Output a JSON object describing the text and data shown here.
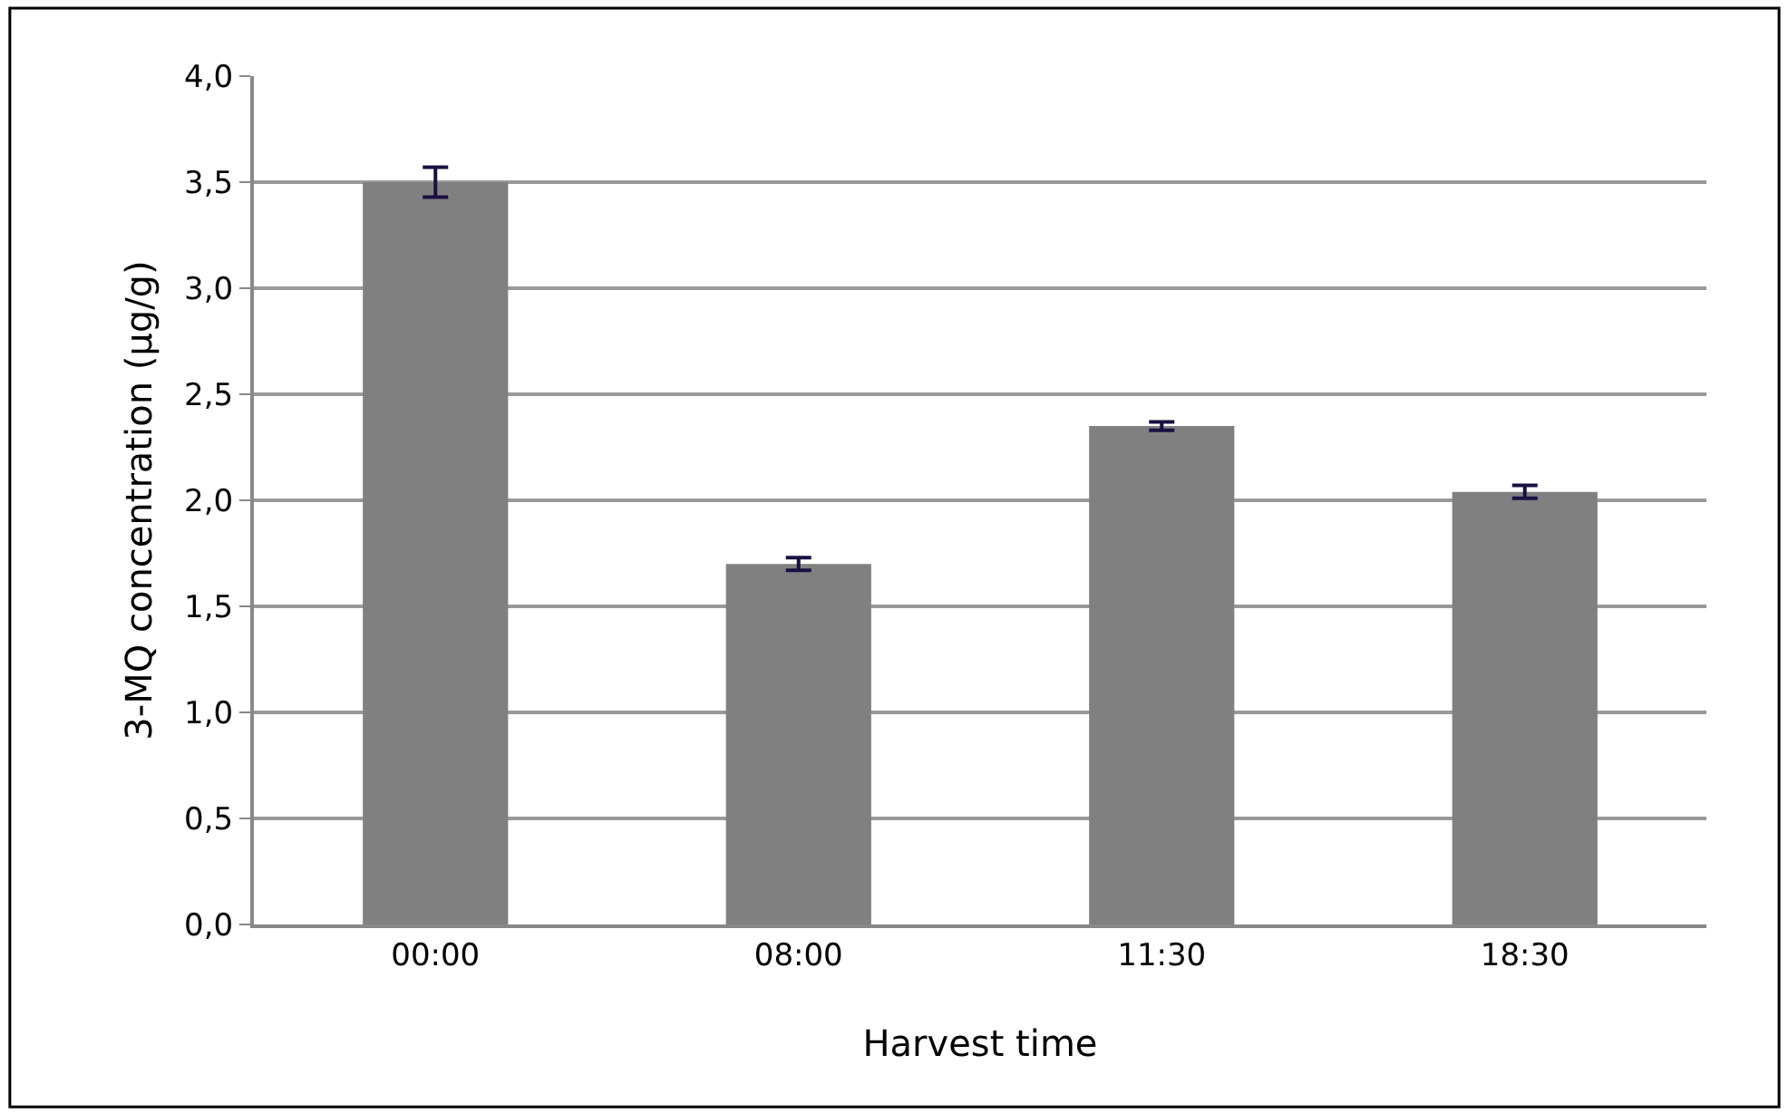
{
  "chart_data": {
    "type": "bar",
    "xlabel": "Harvest time",
    "ylabel": "3-MQ concentration (µg/g)",
    "categories": [
      "00:00",
      "08:00",
      "11:30",
      "18:30"
    ],
    "values": [
      3.5,
      1.7,
      2.35,
      2.04
    ],
    "errors": [
      0.07,
      0.03,
      0.02,
      0.03
    ],
    "color": "#808080",
    "ylim": [
      0,
      4
    ],
    "yticks": [
      {
        "value": 0,
        "label": "0,0"
      },
      {
        "value": 0.5,
        "label": "0,5"
      },
      {
        "value": 1,
        "label": "1,0"
      },
      {
        "value": 1.5,
        "label": "1,5"
      },
      {
        "value": 2,
        "label": "2,0"
      },
      {
        "value": 2.5,
        "label": "2,5"
      },
      {
        "value": 3,
        "label": "3,0"
      },
      {
        "value": 3.5,
        "label": "3,5"
      },
      {
        "value": 4,
        "label": "4,0"
      }
    ],
    "grid": "y"
  }
}
